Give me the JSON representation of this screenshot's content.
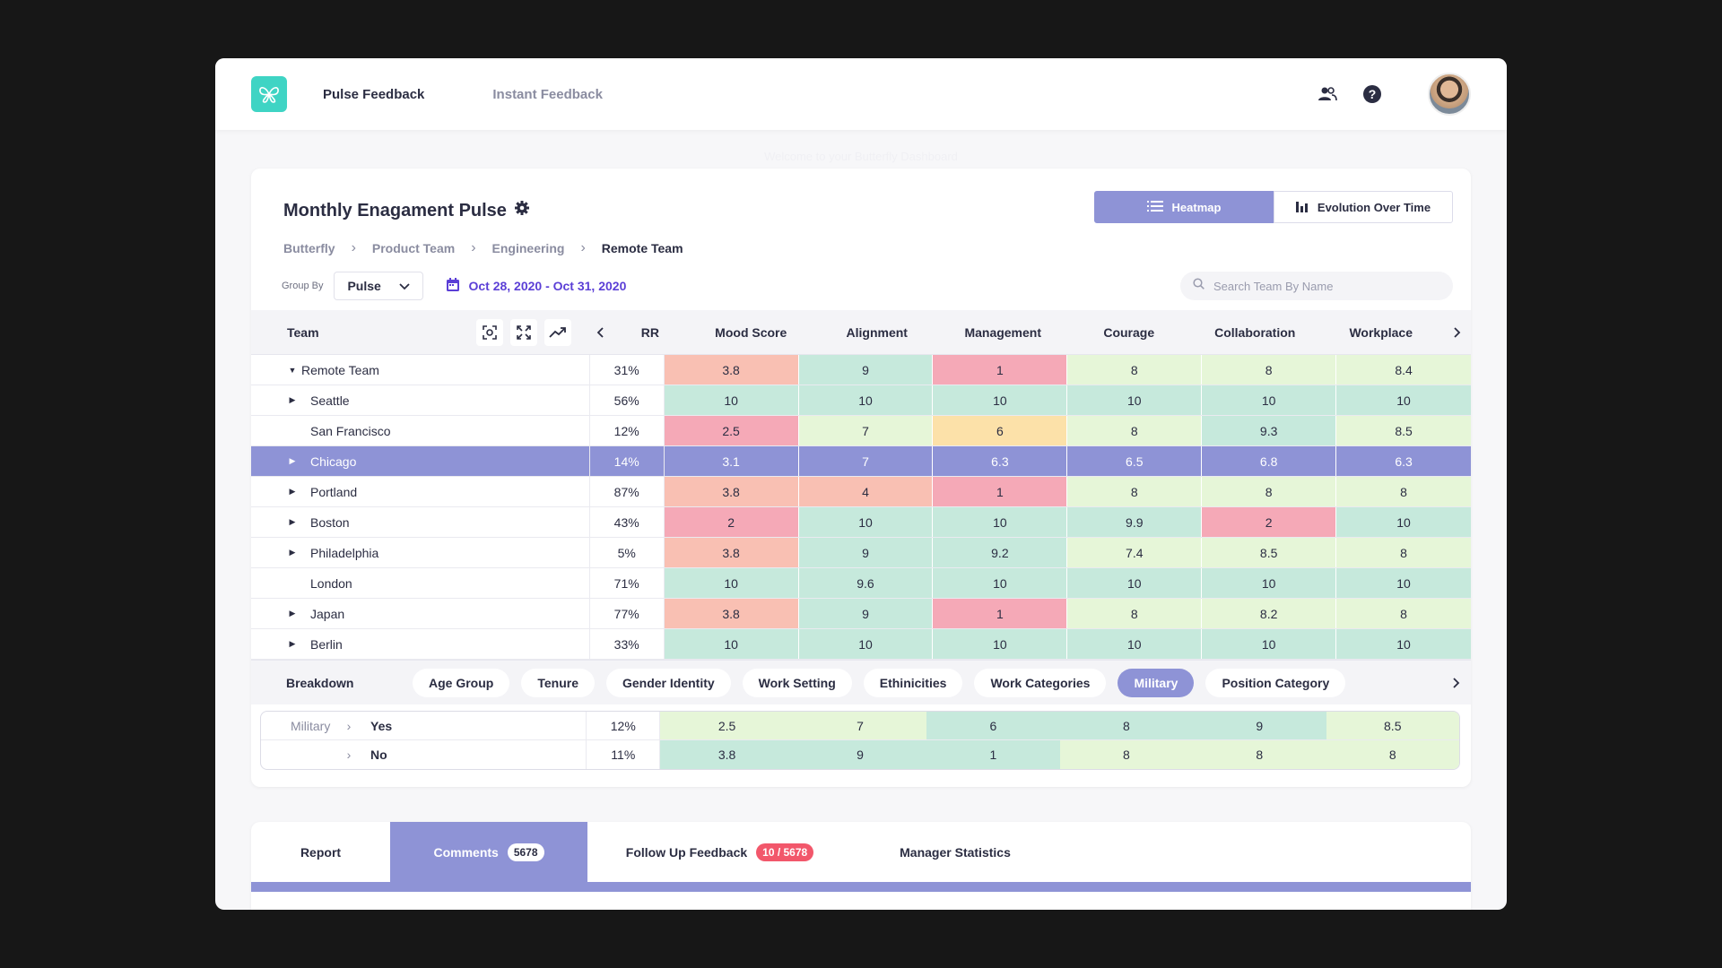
{
  "nav": {
    "pulse_feedback": "Pulse Feedback",
    "instant_feedback": "Instant  Feedback",
    "welcome": "Welcome to your Butterfly Dashboard"
  },
  "card": {
    "title": "Monthly Enagament Pulse",
    "view_heatmap": "Heatmap",
    "view_evolution": "Evolution Over Time"
  },
  "breadcrumb": [
    "Butterfly",
    "Product Team",
    "Engineering",
    "Remote  Team"
  ],
  "filters": {
    "group_by_label": "Group By",
    "group_by_value": "Pulse",
    "date_range": "Oct 28, 2020 - Oct 31, 2020",
    "search_placeholder": "Search Team By Name"
  },
  "table": {
    "team_header": "Team",
    "rr_header": "RR",
    "columns": [
      "Mood Score",
      "Alignment",
      "Management",
      "Courage",
      "Collaboration",
      "Workplace"
    ],
    "rows": [
      {
        "team": "Remote Team",
        "rr": "31%",
        "values": [
          "3.8",
          "9",
          "1",
          "8",
          "8",
          "8.4"
        ],
        "colors": [
          "#f9c0b3",
          "#c6e9dc",
          "#f5a9b7",
          "#e6f6d8",
          "#e6f6d8",
          "#e6f6d8"
        ]
      },
      {
        "team": "Seattle",
        "rr": "56%",
        "values": [
          "10",
          "10",
          "10",
          "10",
          "10",
          "10"
        ],
        "colors": [
          "#c6e9dc",
          "#c6e9dc",
          "#c6e9dc",
          "#c6e9dc",
          "#c6e9dc",
          "#c6e9dc"
        ]
      },
      {
        "team": "San Francisco",
        "rr": "12%",
        "values": [
          "2.5",
          "7",
          "6",
          "8",
          "9.3",
          "8.5"
        ],
        "colors": [
          "#f5a9b7",
          "#e6f6d8",
          "#fce1a9",
          "#e6f6d8",
          "#c6e9dc",
          "#e6f6d8"
        ]
      },
      {
        "team": "Chicago",
        "rr": "14%",
        "values": [
          "3.1",
          "7",
          "6.3",
          "6.5",
          "6.8",
          "6.3"
        ],
        "colors": [
          "#8e93d6",
          "#8e93d6",
          "#8e93d6",
          "#8e93d6",
          "#8e93d6",
          "#8e93d6"
        ]
      },
      {
        "team": "Portland",
        "rr": "87%",
        "values": [
          "3.8",
          "4",
          "1",
          "8",
          "8",
          "8"
        ],
        "colors": [
          "#f9c0b3",
          "#f9c0b3",
          "#f5a9b7",
          "#e6f6d8",
          "#e6f6d8",
          "#e6f6d8"
        ]
      },
      {
        "team": "Boston",
        "rr": "43%",
        "values": [
          "2",
          "10",
          "10",
          "9.9",
          "2",
          "10"
        ],
        "colors": [
          "#f5a9b7",
          "#c6e9dc",
          "#c6e9dc",
          "#c6e9dc",
          "#f5a9b7",
          "#c6e9dc"
        ]
      },
      {
        "team": "Philadelphia",
        "rr": "5%",
        "values": [
          "3.8",
          "9",
          "9.2",
          "7.4",
          "8.5",
          "8"
        ],
        "colors": [
          "#f9c0b3",
          "#c6e9dc",
          "#c6e9dc",
          "#e6f6d8",
          "#e6f6d8",
          "#e6f6d8"
        ]
      },
      {
        "team": "London",
        "rr": "71%",
        "values": [
          "10",
          "9.6",
          "10",
          "10",
          "10",
          "10"
        ],
        "colors": [
          "#c6e9dc",
          "#c6e9dc",
          "#c6e9dc",
          "#c6e9dc",
          "#c6e9dc",
          "#c6e9dc"
        ]
      },
      {
        "team": "Japan",
        "rr": "77%",
        "values": [
          "3.8",
          "9",
          "1",
          "8",
          "8.2",
          "8"
        ],
        "colors": [
          "#f9c0b3",
          "#c6e9dc",
          "#f5a9b7",
          "#e6f6d8",
          "#e6f6d8",
          "#e6f6d8"
        ]
      },
      {
        "team": "Berlin",
        "rr": "33%",
        "values": [
          "10",
          "10",
          "10",
          "10",
          "10",
          "10"
        ],
        "colors": [
          "#c6e9dc",
          "#c6e9dc",
          "#c6e9dc",
          "#c6e9dc",
          "#c6e9dc",
          "#c6e9dc"
        ]
      }
    ]
  },
  "breakdown": {
    "label": "Breakdown",
    "options": [
      "Age Group",
      "Tenure",
      "Gender Identity",
      "Work Setting",
      "Ethinicities",
      "Work Categories",
      "Military",
      "Position Category"
    ],
    "active": "Military",
    "sub_label": "Military",
    "rows": [
      {
        "value": "Yes",
        "rr": "12%",
        "values": [
          "2.5",
          "7",
          "6",
          "8",
          "9",
          "8.5"
        ],
        "colors": [
          "#e6f6d8",
          "#e6f6d8",
          "#c6e9dc",
          "#c6e9dc",
          "#c6e9dc",
          "#e6f6d8"
        ]
      },
      {
        "value": "No",
        "rr": "11%",
        "values": [
          "3.8",
          "9",
          "1",
          "8",
          "8",
          "8"
        ],
        "colors": [
          "#c6e9dc",
          "#c6e9dc",
          "#c6e9dc",
          "#e6f6d8",
          "#e6f6d8",
          "#e6f6d8"
        ]
      }
    ]
  },
  "tabs": {
    "report": "Report",
    "comments": "Comments",
    "comments_count": "5678",
    "follow_up": "Follow Up Feedback",
    "follow_up_count": "10 / 5678",
    "manager_stats": "Manager Statistics"
  },
  "colors": {
    "accent": "#8e93d6",
    "brand": "#3fd4c4",
    "date_text": "#5b3fd6",
    "badge_red": "#f2576b"
  },
  "icons": [
    "butterfly-logo",
    "users-icon",
    "help-icon",
    "gear-icon",
    "list-icon",
    "bar-chart-icon",
    "calendar-icon",
    "search-icon",
    "focus-icon",
    "expand-icon",
    "trend-icon",
    "chevron-left-icon",
    "chevron-right-icon",
    "chevron-down-icon"
  ]
}
